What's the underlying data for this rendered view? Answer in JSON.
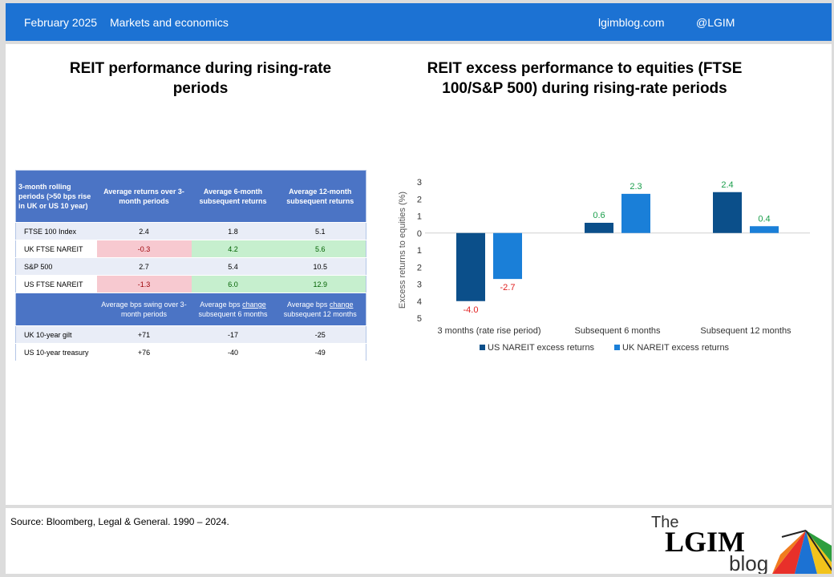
{
  "header": {
    "date": "February 2025",
    "category": "Markets and economics",
    "site": "lgimblog.com",
    "handle": "@LGIM"
  },
  "left_title": "REIT performance during rising-rate periods",
  "right_title": "REIT excess performance to equities (FTSE 100/S&P 500) during rising-rate periods",
  "table": {
    "headers": [
      "3-month rolling periods (>50 bps rise in UK or US 10 year)",
      "Average returns over 3-month periods",
      "Average 6-month subsequent returns",
      "Average 12-month subsequent returns"
    ],
    "rows": [
      {
        "label": "FTSE 100 Index",
        "values": [
          "2.4",
          "1.8",
          "5.1"
        ]
      },
      {
        "label": "UK FTSE NAREIT",
        "values": [
          "-0.3",
          "4.2",
          "5.6"
        ]
      },
      {
        "label": "S&P 500",
        "values": [
          "2.7",
          "5.4",
          "10.5"
        ]
      },
      {
        "label": "US FTSE NAREIT",
        "values": [
          "-1.3",
          "6.0",
          "12.9"
        ]
      }
    ],
    "headers2": [
      "",
      "Average bps swing over 3-month periods",
      "Average bps change subsequent 6 months",
      "Average bps change subsequent 12 months"
    ],
    "rows2": [
      {
        "label": "UK 10-year gilt",
        "values": [
          "+71",
          "-17",
          "-25"
        ]
      },
      {
        "label": "US 10-year treasury",
        "values": [
          "+76",
          "-40",
          "-49"
        ]
      }
    ],
    "colors": {
      "negative_fill": "#f7c9d0",
      "positive_fill": "#c6efce",
      "header_fill": "#4b74c5"
    }
  },
  "chart_data": {
    "type": "bar",
    "categories": [
      "3 months (rate rise period)",
      "Subsequent 6 months",
      "Subsequent 12 months"
    ],
    "series": [
      {
        "name": "US NAREIT excess returns",
        "values": [
          -4.0,
          0.6,
          2.4
        ],
        "labels": [
          "-4.0",
          "0.6",
          "2.4"
        ],
        "color": "#0b4f8a"
      },
      {
        "name": "UK NAREIT excess returns",
        "values": [
          -2.7,
          2.3,
          0.4
        ],
        "labels": [
          "-2.7",
          "2.3",
          "0.4"
        ],
        "color": "#1a7fd8"
      }
    ],
    "ylabel": "Excess returns to equities (%)",
    "ylim": [
      -5,
      3
    ],
    "yticks": [
      3,
      2,
      1,
      0,
      -1,
      -2,
      -3,
      -4,
      -5
    ],
    "ytick_labels": [
      "3",
      "2",
      "1",
      "0",
      "1",
      "2",
      "3",
      "4",
      "5"
    ],
    "legend_placement": "bottom",
    "grid": false,
    "label_colors": {
      "positive": "#1a9e4b",
      "negative": "#e02020"
    }
  },
  "footer": {
    "source": "Source: Bloomberg, Legal & General. 1990 – 2024.",
    "logo_the": "The",
    "logo_main": "LGIM",
    "logo_blog": "blog"
  }
}
